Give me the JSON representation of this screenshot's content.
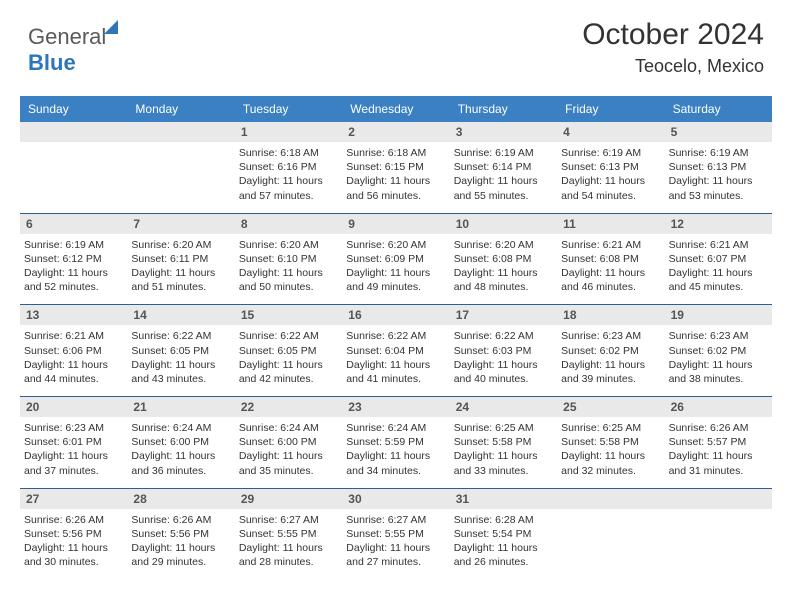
{
  "logo": {
    "word1": "General",
    "word2": "Blue"
  },
  "header": {
    "title": "October 2024",
    "subtitle": "Teocelo, Mexico"
  },
  "colors": {
    "header_bg": "#3a80c3",
    "week_border": "#2d5f8f",
    "daynum_bg": "#e9e9e9",
    "text": "#333333"
  },
  "weekdays": [
    "Sunday",
    "Monday",
    "Tuesday",
    "Wednesday",
    "Thursday",
    "Friday",
    "Saturday"
  ],
  "weeks": [
    [
      {
        "day": "",
        "sunrise": "",
        "sunset": "",
        "daylight": ""
      },
      {
        "day": "",
        "sunrise": "",
        "sunset": "",
        "daylight": ""
      },
      {
        "day": "1",
        "sunrise": "Sunrise: 6:18 AM",
        "sunset": "Sunset: 6:16 PM",
        "daylight": "Daylight: 11 hours and 57 minutes."
      },
      {
        "day": "2",
        "sunrise": "Sunrise: 6:18 AM",
        "sunset": "Sunset: 6:15 PM",
        "daylight": "Daylight: 11 hours and 56 minutes."
      },
      {
        "day": "3",
        "sunrise": "Sunrise: 6:19 AM",
        "sunset": "Sunset: 6:14 PM",
        "daylight": "Daylight: 11 hours and 55 minutes."
      },
      {
        "day": "4",
        "sunrise": "Sunrise: 6:19 AM",
        "sunset": "Sunset: 6:13 PM",
        "daylight": "Daylight: 11 hours and 54 minutes."
      },
      {
        "day": "5",
        "sunrise": "Sunrise: 6:19 AM",
        "sunset": "Sunset: 6:13 PM",
        "daylight": "Daylight: 11 hours and 53 minutes."
      }
    ],
    [
      {
        "day": "6",
        "sunrise": "Sunrise: 6:19 AM",
        "sunset": "Sunset: 6:12 PM",
        "daylight": "Daylight: 11 hours and 52 minutes."
      },
      {
        "day": "7",
        "sunrise": "Sunrise: 6:20 AM",
        "sunset": "Sunset: 6:11 PM",
        "daylight": "Daylight: 11 hours and 51 minutes."
      },
      {
        "day": "8",
        "sunrise": "Sunrise: 6:20 AM",
        "sunset": "Sunset: 6:10 PM",
        "daylight": "Daylight: 11 hours and 50 minutes."
      },
      {
        "day": "9",
        "sunrise": "Sunrise: 6:20 AM",
        "sunset": "Sunset: 6:09 PM",
        "daylight": "Daylight: 11 hours and 49 minutes."
      },
      {
        "day": "10",
        "sunrise": "Sunrise: 6:20 AM",
        "sunset": "Sunset: 6:08 PM",
        "daylight": "Daylight: 11 hours and 48 minutes."
      },
      {
        "day": "11",
        "sunrise": "Sunrise: 6:21 AM",
        "sunset": "Sunset: 6:08 PM",
        "daylight": "Daylight: 11 hours and 46 minutes."
      },
      {
        "day": "12",
        "sunrise": "Sunrise: 6:21 AM",
        "sunset": "Sunset: 6:07 PM",
        "daylight": "Daylight: 11 hours and 45 minutes."
      }
    ],
    [
      {
        "day": "13",
        "sunrise": "Sunrise: 6:21 AM",
        "sunset": "Sunset: 6:06 PM",
        "daylight": "Daylight: 11 hours and 44 minutes."
      },
      {
        "day": "14",
        "sunrise": "Sunrise: 6:22 AM",
        "sunset": "Sunset: 6:05 PM",
        "daylight": "Daylight: 11 hours and 43 minutes."
      },
      {
        "day": "15",
        "sunrise": "Sunrise: 6:22 AM",
        "sunset": "Sunset: 6:05 PM",
        "daylight": "Daylight: 11 hours and 42 minutes."
      },
      {
        "day": "16",
        "sunrise": "Sunrise: 6:22 AM",
        "sunset": "Sunset: 6:04 PM",
        "daylight": "Daylight: 11 hours and 41 minutes."
      },
      {
        "day": "17",
        "sunrise": "Sunrise: 6:22 AM",
        "sunset": "Sunset: 6:03 PM",
        "daylight": "Daylight: 11 hours and 40 minutes."
      },
      {
        "day": "18",
        "sunrise": "Sunrise: 6:23 AM",
        "sunset": "Sunset: 6:02 PM",
        "daylight": "Daylight: 11 hours and 39 minutes."
      },
      {
        "day": "19",
        "sunrise": "Sunrise: 6:23 AM",
        "sunset": "Sunset: 6:02 PM",
        "daylight": "Daylight: 11 hours and 38 minutes."
      }
    ],
    [
      {
        "day": "20",
        "sunrise": "Sunrise: 6:23 AM",
        "sunset": "Sunset: 6:01 PM",
        "daylight": "Daylight: 11 hours and 37 minutes."
      },
      {
        "day": "21",
        "sunrise": "Sunrise: 6:24 AM",
        "sunset": "Sunset: 6:00 PM",
        "daylight": "Daylight: 11 hours and 36 minutes."
      },
      {
        "day": "22",
        "sunrise": "Sunrise: 6:24 AM",
        "sunset": "Sunset: 6:00 PM",
        "daylight": "Daylight: 11 hours and 35 minutes."
      },
      {
        "day": "23",
        "sunrise": "Sunrise: 6:24 AM",
        "sunset": "Sunset: 5:59 PM",
        "daylight": "Daylight: 11 hours and 34 minutes."
      },
      {
        "day": "24",
        "sunrise": "Sunrise: 6:25 AM",
        "sunset": "Sunset: 5:58 PM",
        "daylight": "Daylight: 11 hours and 33 minutes."
      },
      {
        "day": "25",
        "sunrise": "Sunrise: 6:25 AM",
        "sunset": "Sunset: 5:58 PM",
        "daylight": "Daylight: 11 hours and 32 minutes."
      },
      {
        "day": "26",
        "sunrise": "Sunrise: 6:26 AM",
        "sunset": "Sunset: 5:57 PM",
        "daylight": "Daylight: 11 hours and 31 minutes."
      }
    ],
    [
      {
        "day": "27",
        "sunrise": "Sunrise: 6:26 AM",
        "sunset": "Sunset: 5:56 PM",
        "daylight": "Daylight: 11 hours and 30 minutes."
      },
      {
        "day": "28",
        "sunrise": "Sunrise: 6:26 AM",
        "sunset": "Sunset: 5:56 PM",
        "daylight": "Daylight: 11 hours and 29 minutes."
      },
      {
        "day": "29",
        "sunrise": "Sunrise: 6:27 AM",
        "sunset": "Sunset: 5:55 PM",
        "daylight": "Daylight: 11 hours and 28 minutes."
      },
      {
        "day": "30",
        "sunrise": "Sunrise: 6:27 AM",
        "sunset": "Sunset: 5:55 PM",
        "daylight": "Daylight: 11 hours and 27 minutes."
      },
      {
        "day": "31",
        "sunrise": "Sunrise: 6:28 AM",
        "sunset": "Sunset: 5:54 PM",
        "daylight": "Daylight: 11 hours and 26 minutes."
      },
      {
        "day": "",
        "sunrise": "",
        "sunset": "",
        "daylight": ""
      },
      {
        "day": "",
        "sunrise": "",
        "sunset": "",
        "daylight": ""
      }
    ]
  ]
}
